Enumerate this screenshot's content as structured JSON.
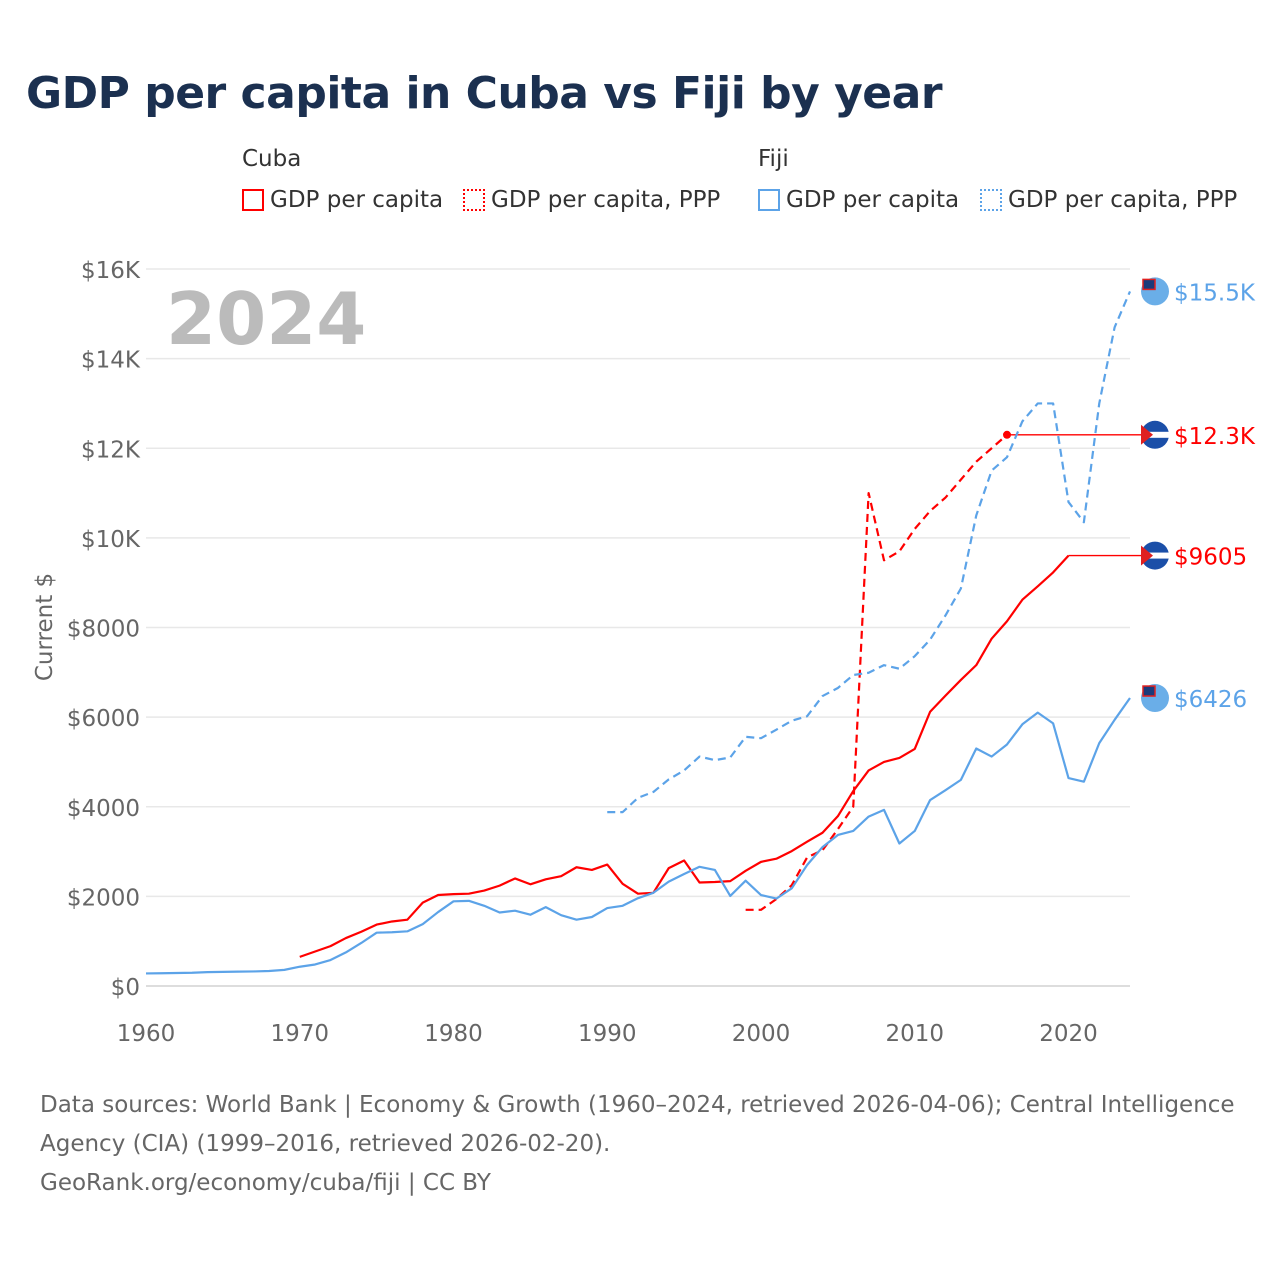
{
  "chart_data": {
    "type": "line",
    "title": "GDP per capita in Cuba vs Fiji by year",
    "ylabel": "Current $",
    "xlabel": "",
    "xlim": [
      1960,
      2024
    ],
    "ylim": [
      0,
      16000
    ],
    "x_ticks": [
      "1960",
      "1970",
      "1980",
      "1990",
      "2000",
      "2010",
      "2020"
    ],
    "y_ticks": [
      "$0",
      "$2000",
      "$4000",
      "$6000",
      "$8000",
      "$10K",
      "$12K",
      "$14K",
      "$16K"
    ],
    "year_watermark": "2024",
    "grid": true,
    "legend_groups": [
      {
        "name": "Cuba",
        "entries": [
          "GDP per capita",
          "GDP per capita, PPP"
        ]
      },
      {
        "name": "Fiji",
        "entries": [
          "GDP per capita",
          "GDP per capita, PPP"
        ]
      }
    ],
    "series": [
      {
        "name": "Cuba GDP per capita",
        "color": "#ff0000",
        "dashed": false,
        "end_label": "$9605",
        "start": 1970,
        "values": [
          650,
          770,
          890,
          1070,
          1210,
          1370,
          1440,
          1480,
          1860,
          2030,
          2050,
          2060,
          2130,
          2240,
          2400,
          2270,
          2380,
          2450,
          2650,
          2590,
          2710,
          2280,
          2060,
          2080,
          2630,
          2800,
          2310,
          2320,
          2340,
          2570,
          2770,
          2840,
          3010,
          3220,
          3420,
          3790,
          4350,
          4810,
          5000,
          5090,
          5290,
          6120,
          6480,
          6830,
          7160,
          7750,
          8140,
          8620,
          8920,
          9230,
          9605
        ]
      },
      {
        "name": "Cuba GDP per capita, PPP",
        "color": "#ff0000",
        "dashed": true,
        "end_label": "$12.3K",
        "start": 1999,
        "values": [
          1700,
          1700,
          1940,
          2250,
          2870,
          3030,
          3500,
          4000,
          11000,
          9500,
          9700,
          10200,
          10600,
          10900,
          11300,
          11700,
          12000,
          12300
        ]
      },
      {
        "name": "Fiji GDP per capita",
        "color": "#5ca3e8",
        "dashed": false,
        "end_label": "$6426",
        "start": 1960,
        "values": [
          280,
          285,
          290,
          295,
          310,
          315,
          320,
          325,
          335,
          360,
          430,
          480,
          580,
          750,
          960,
          1190,
          1200,
          1220,
          1380,
          1650,
          1890,
          1900,
          1790,
          1640,
          1680,
          1590,
          1760,
          1580,
          1480,
          1540,
          1740,
          1790,
          1960,
          2080,
          2330,
          2500,
          2660,
          2590,
          2010,
          2350,
          2030,
          1950,
          2180,
          2700,
          3100,
          3370,
          3460,
          3780,
          3930,
          3180,
          3460,
          4150,
          4370,
          4600,
          5300,
          5120,
          5390,
          5840,
          6100,
          5860,
          4640,
          4560,
          5420,
          5940,
          6426
        ]
      },
      {
        "name": "Fiji GDP per capita, PPP",
        "color": "#5ca3e8",
        "dashed": true,
        "end_label": "$15.5K",
        "start": 1990,
        "values": [
          3880,
          3880,
          4200,
          4330,
          4610,
          4810,
          5120,
          5040,
          5100,
          5560,
          5530,
          5720,
          5920,
          6020,
          6470,
          6650,
          6940,
          6990,
          7160,
          7080,
          7360,
          7730,
          8270,
          8870,
          10500,
          11500,
          11800,
          12600,
          13000,
          13000,
          10800,
          10350,
          13000,
          14700,
          15500
        ]
      }
    ]
  },
  "footer": {
    "sources": "Data sources: World Bank | Economy & Growth (1960–2024, retrieved 2026-04-06); Central Intelligence Agency (CIA) (1999–2016, retrieved 2026-02-20).",
    "link": "GeoRank.org/economy/cuba/fiji | CC BY"
  }
}
